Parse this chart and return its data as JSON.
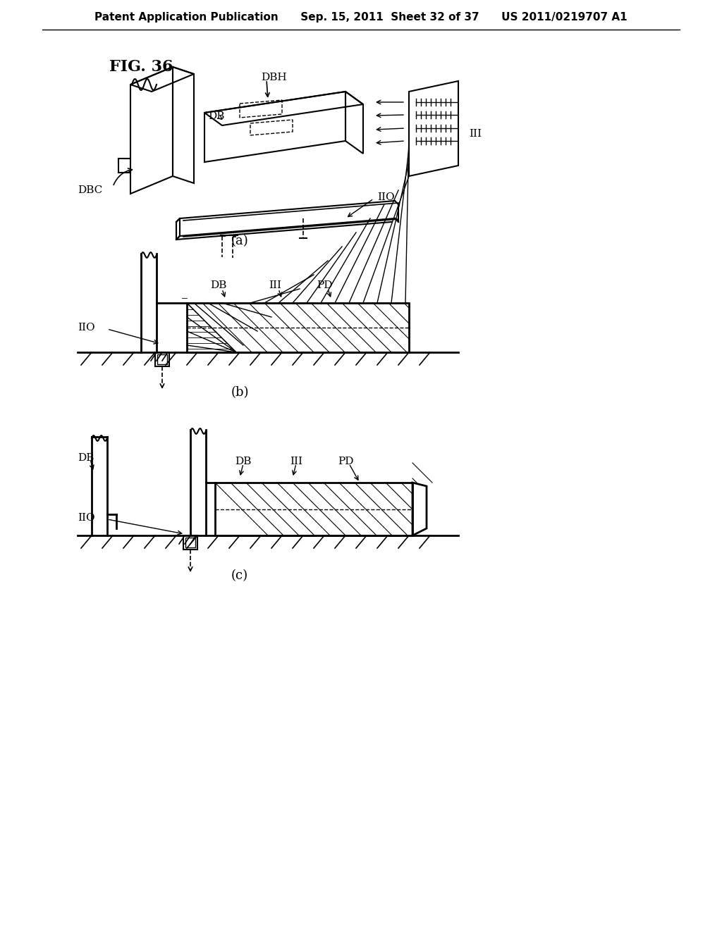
{
  "title": "FIG. 36",
  "header_left": "Patent Application Publication",
  "header_mid": "Sep. 15, 2011  Sheet 32 of 37",
  "header_right": "US 2011/0219707 A1",
  "bg_color": "#ffffff",
  "line_color": "#000000",
  "sub_labels": [
    "(a)",
    "(b)",
    "(c)"
  ],
  "labels": {
    "DB": "DB",
    "DBH": "DBH",
    "DBC": "DBC",
    "IIO_a": "IIO",
    "III_a": "III",
    "IIO_b": "IIO",
    "DB_b": "DB",
    "III_b": "III",
    "PD_b": "PD",
    "DB_c1": "DB",
    "DB_c2": "DB",
    "III_c": "III",
    "PD_c": "PD",
    "IIO_c": "IIO"
  }
}
